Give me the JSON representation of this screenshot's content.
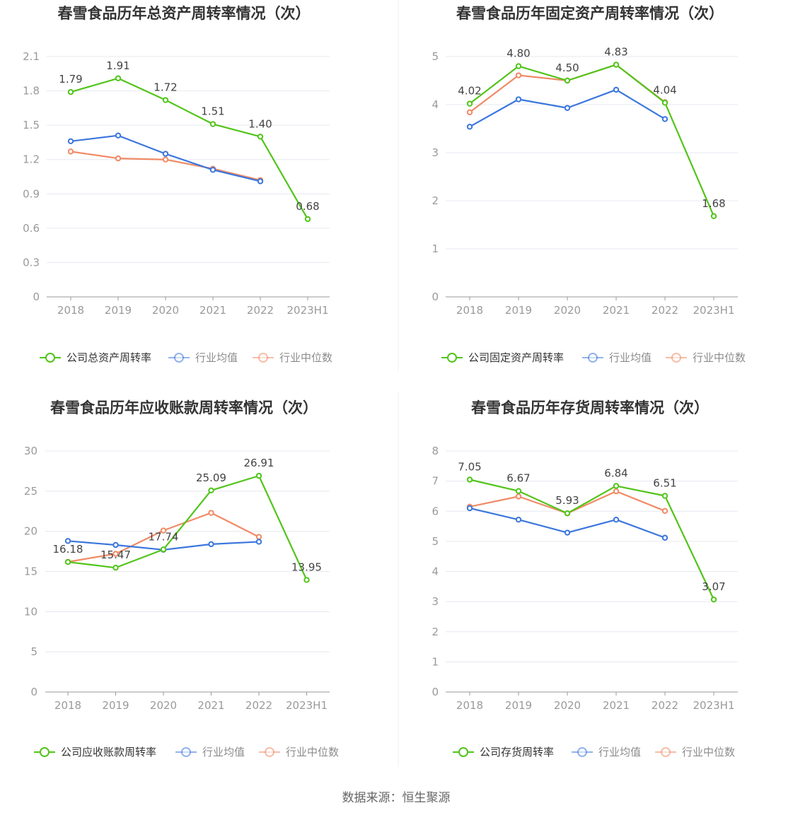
{
  "source": "数据来源：恒生聚源",
  "chart_data": [
    {
      "type": "line",
      "title": "春雪食品历年总资产周转率情况（次）",
      "categories": [
        "2018",
        "2019",
        "2020",
        "2021",
        "2022",
        "2023H1"
      ],
      "y_ticks": [
        "0",
        "0.3",
        "0.6",
        "0.9",
        "1.2",
        "1.5",
        "1.8",
        "2.1"
      ],
      "ylim": [
        0,
        2.1
      ],
      "series": [
        {
          "name": "公司总资产周转率",
          "color": "#52c41a",
          "values": [
            1.79,
            1.91,
            1.72,
            1.51,
            1.4,
            0.68
          ],
          "labels": [
            "1.79",
            "1.91",
            "1.72",
            "1.51",
            "1.40",
            "0.68"
          ]
        },
        {
          "name": "行业均值",
          "color": "#3b76dd",
          "values": [
            1.36,
            1.41,
            1.25,
            1.11,
            1.01,
            null
          ]
        },
        {
          "name": "行业中位数",
          "color": "#f08a66",
          "values": [
            1.27,
            1.21,
            1.2,
            1.12,
            1.02,
            null
          ]
        }
      ]
    },
    {
      "type": "line",
      "title": "春雪食品历年固定资产周转率情况（次）",
      "categories": [
        "2018",
        "2019",
        "2020",
        "2021",
        "2022",
        "2023H1"
      ],
      "y_ticks": [
        "0",
        "1",
        "2",
        "3",
        "4",
        "5"
      ],
      "ylim": [
        0,
        5
      ],
      "series": [
        {
          "name": "公司固定资产周转率",
          "color": "#52c41a",
          "values": [
            4.02,
            4.8,
            4.5,
            4.83,
            4.04,
            1.68
          ],
          "labels": [
            "4.02",
            "4.80",
            "4.50",
            "4.83",
            "4.04",
            "1.68"
          ]
        },
        {
          "name": "行业均值",
          "color": "#3b76dd",
          "values": [
            3.54,
            4.11,
            3.93,
            4.31,
            3.7,
            null
          ]
        },
        {
          "name": "行业中位数",
          "color": "#f08a66",
          "values": [
            3.84,
            4.61,
            4.5,
            4.83,
            4.05,
            null
          ]
        }
      ]
    },
    {
      "type": "line",
      "title": "春雪食品历年应收账款周转率情况（次）",
      "categories": [
        "2018",
        "2019",
        "2020",
        "2021",
        "2022",
        "2023H1"
      ],
      "y_ticks": [
        "0",
        "5",
        "10",
        "15",
        "20",
        "25",
        "30"
      ],
      "ylim": [
        0,
        30
      ],
      "series": [
        {
          "name": "公司应收账款周转率",
          "color": "#52c41a",
          "values": [
            16.18,
            15.47,
            17.74,
            25.09,
            26.91,
            13.95
          ],
          "labels": [
            "16.18",
            "15.47",
            "17.74",
            "25.09",
            "26.91",
            "13.95"
          ]
        },
        {
          "name": "行业均值",
          "color": "#3b76dd",
          "values": [
            18.8,
            18.3,
            17.7,
            18.4,
            18.7,
            null
          ]
        },
        {
          "name": "行业中位数",
          "color": "#f08a66",
          "values": [
            16.2,
            17.2,
            20.1,
            22.3,
            19.3,
            null
          ]
        }
      ]
    },
    {
      "type": "line",
      "title": "春雪食品历年存货周转率情况（次）",
      "categories": [
        "2018",
        "2019",
        "2020",
        "2021",
        "2022",
        "2023H1"
      ],
      "y_ticks": [
        "0",
        "1",
        "2",
        "3",
        "4",
        "5",
        "6",
        "7",
        "8"
      ],
      "ylim": [
        0,
        8
      ],
      "series": [
        {
          "name": "公司存货周转率",
          "color": "#52c41a",
          "values": [
            7.05,
            6.67,
            5.93,
            6.84,
            6.51,
            3.07
          ],
          "labels": [
            "7.05",
            "6.67",
            "5.93",
            "6.84",
            "6.51",
            "3.07"
          ]
        },
        {
          "name": "行业均值",
          "color": "#3b76dd",
          "values": [
            6.1,
            5.72,
            5.29,
            5.72,
            5.12,
            null
          ]
        },
        {
          "name": "行业中位数",
          "color": "#f08a66",
          "values": [
            6.15,
            6.49,
            5.93,
            6.66,
            6.01,
            null
          ]
        }
      ]
    }
  ]
}
